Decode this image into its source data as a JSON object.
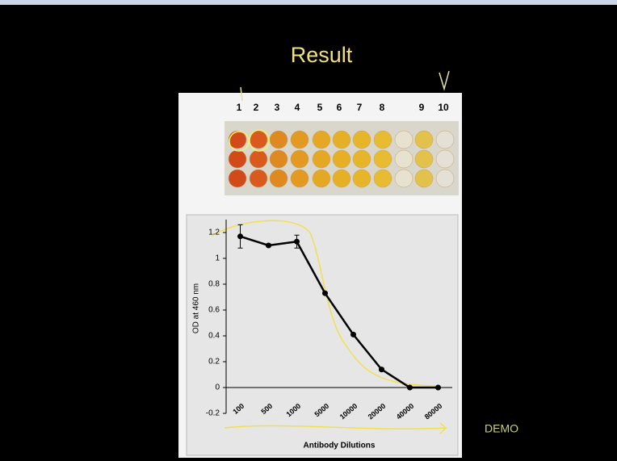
{
  "slide": {
    "title": "Result",
    "watermark": "DEMO",
    "well_numbers": [
      1,
      2,
      3,
      4,
      5,
      6,
      7,
      8,
      9,
      10
    ]
  },
  "chart_data": {
    "type": "line",
    "categories": [
      "100",
      "500",
      "1000",
      "5000",
      "10000",
      "20000",
      "40000",
      "80000"
    ],
    "values": [
      1.17,
      1.1,
      1.13,
      0.73,
      0.41,
      0.14,
      0.0,
      0.0
    ],
    "errors": [
      0.09,
      0.01,
      0.05,
      0.01,
      0.01,
      0.01,
      0.0,
      0.0
    ],
    "color": "#000000",
    "ylim": [
      -0.2,
      1.3
    ],
    "yticks": [
      -0.2,
      0,
      0.2,
      0.4,
      0.6,
      0.8,
      1,
      1.2
    ],
    "ylabel": "OD at 460 nm",
    "xlabel": "Antibody Dilutions",
    "grid": false
  }
}
